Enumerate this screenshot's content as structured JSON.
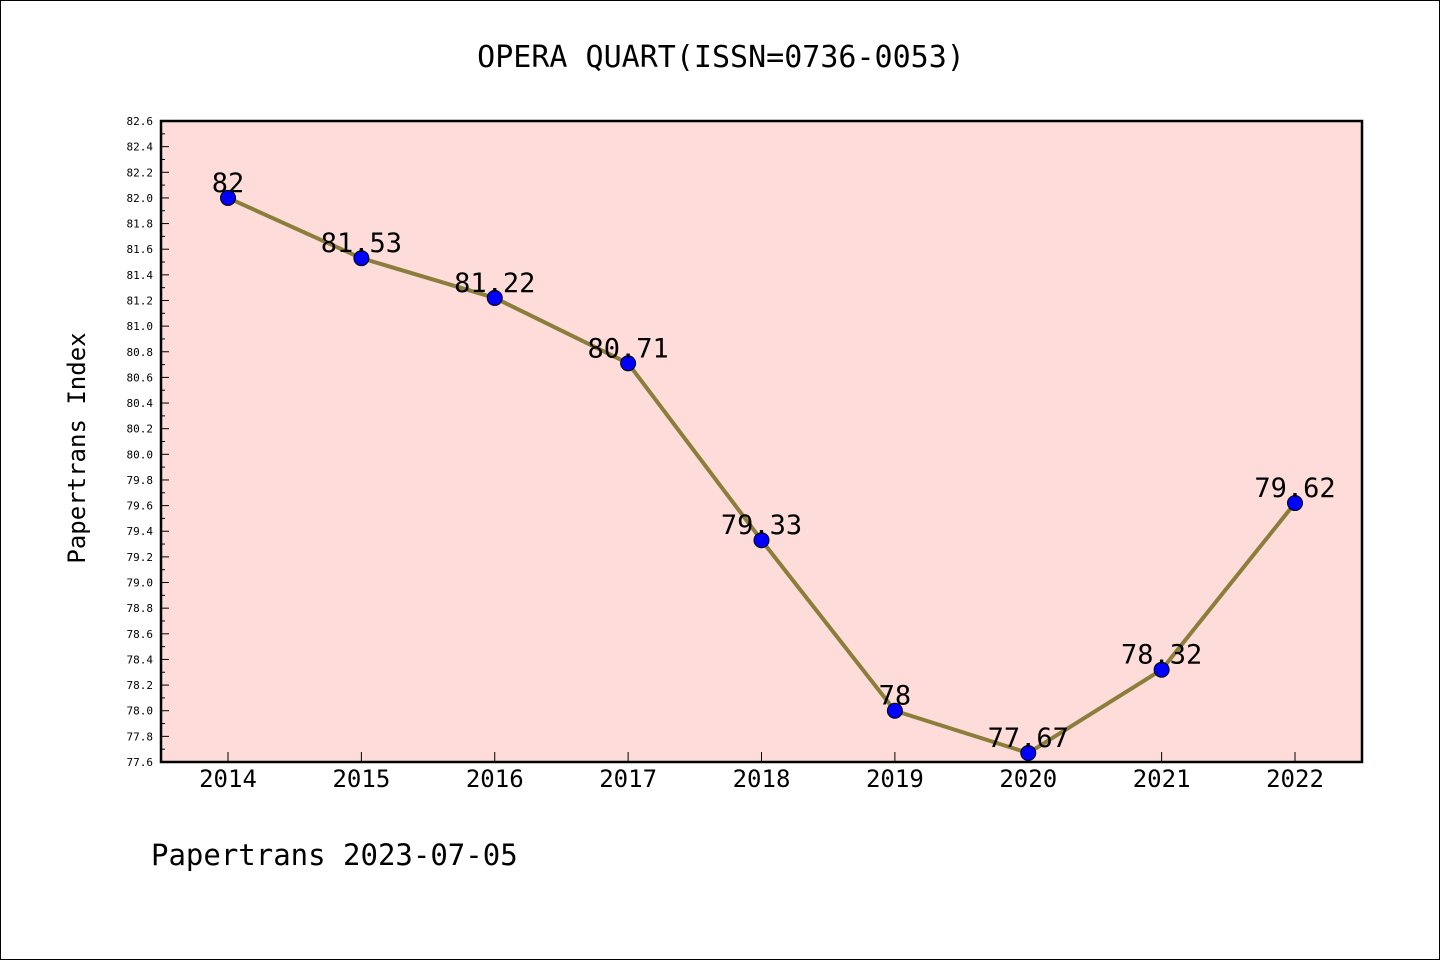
{
  "chart_data": {
    "type": "line",
    "title": "OPERA QUART(ISSN=0736-0053)",
    "xlabel": "",
    "ylabel": "Papertrans Index",
    "footer": "Papertrans 2023-07-05",
    "categories": [
      "2014",
      "2015",
      "2016",
      "2017",
      "2018",
      "2019",
      "2020",
      "2021",
      "2022"
    ],
    "series": [
      {
        "values": [
          82,
          81.53,
          81.22,
          80.71,
          79.33,
          78,
          77.67,
          78.32,
          79.62
        ],
        "labels": [
          "82",
          "81.53",
          "81.22",
          "80.71",
          "79.33",
          "78",
          "77.67",
          "78.32",
          "79.62"
        ]
      }
    ],
    "ylim": [
      77.6,
      82.6
    ],
    "yticks": [
      "77.6",
      "77.8",
      "78.0",
      "78.2",
      "78.4",
      "78.6",
      "78.8",
      "79.0",
      "79.2",
      "79.4",
      "79.6",
      "79.8",
      "80.0",
      "80.2",
      "80.4",
      "80.6",
      "80.8",
      "81.0",
      "81.2",
      "81.4",
      "81.6",
      "81.8",
      "82.0",
      "82.2",
      "82.4",
      "82.6"
    ],
    "grid": false,
    "colors": {
      "plot_background": "#FDDCDA",
      "line": "#8B7D3A",
      "marker": "#0000FF"
    }
  }
}
